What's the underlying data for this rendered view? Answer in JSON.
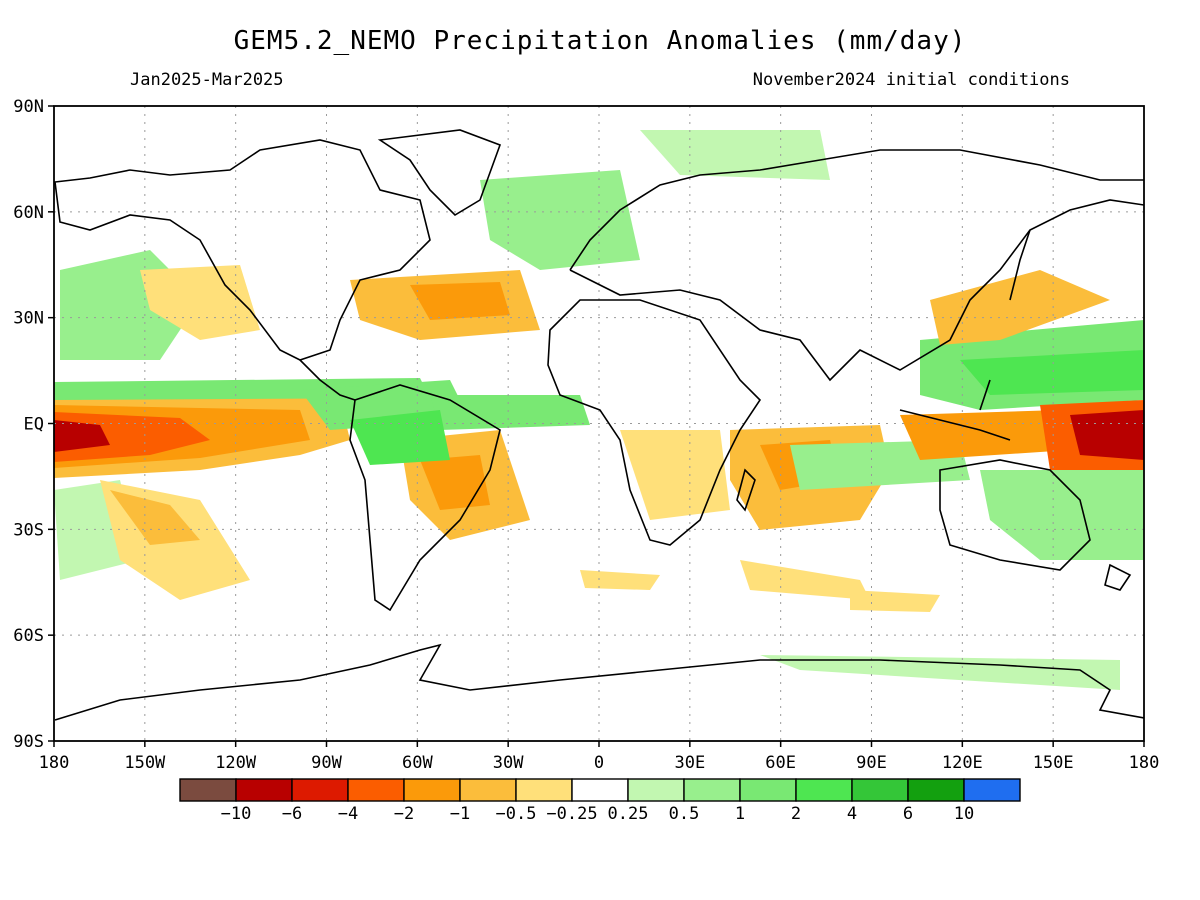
{
  "title": "GEM5.2_NEMO Precipitation Anomalies (mm/day)",
  "period": "Jan2025-Mar2025",
  "initial_conditions": "November2024 initial conditions",
  "colors": {
    "frame": "#000000",
    "grid": "#9a9a9a",
    "coast": "#000000"
  },
  "lat_labels": [
    "90N",
    "60N",
    "30N",
    "EQ",
    "30S",
    "60S",
    "90S"
  ],
  "lon_labels": [
    "180",
    "150W",
    "120W",
    "90W",
    "60W",
    "30W",
    "0",
    "30E",
    "60E",
    "90E",
    "120E",
    "150E",
    "180"
  ],
  "colorbar": {
    "colors": [
      "#7b4b3f",
      "#b80000",
      "#dd1a00",
      "#fb5d00",
      "#fb9a0a",
      "#fbbd3b",
      "#ffe07a",
      "#ffffff",
      "#c2f7b1",
      "#98ef8d",
      "#79e873",
      "#4ee651",
      "#34c638",
      "#13a00f",
      "#1f6ef0"
    ],
    "labels": [
      "-10",
      "-6",
      "-4",
      "-2",
      "-1",
      "-0.5",
      "-0.25",
      "0.25",
      "0.5",
      "1",
      "2",
      "4",
      "6",
      "10"
    ]
  }
}
